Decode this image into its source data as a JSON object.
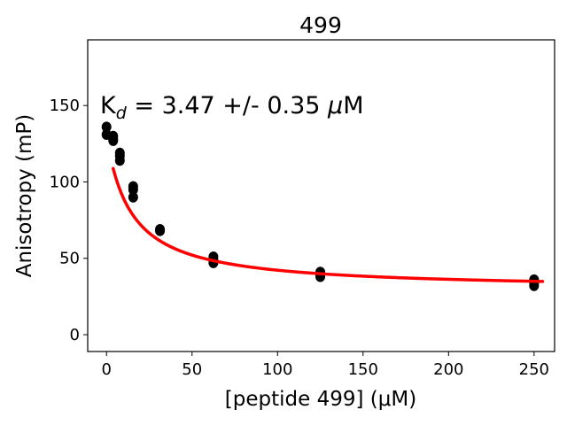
{
  "chart_data": {
    "type": "scatter",
    "title": "499",
    "xlabel": "[peptide 499] (μM)",
    "ylabel": "Anisotropy (mP)",
    "annotation": {
      "k_main": "K",
      "k_sub": "d",
      "text": " = 3.47 +/- 0.35 ",
      "mu": "μ",
      "unit": "M"
    },
    "xlim": [
      -11,
      262
    ],
    "ylim": [
      -11,
      193
    ],
    "xticks": [
      0,
      50,
      100,
      150,
      200,
      250
    ],
    "yticks": [
      0,
      50,
      100,
      150
    ],
    "grid": false,
    "series": [
      {
        "kind": "points",
        "color": "#000000",
        "points": [
          [
            0,
            136
          ],
          [
            0,
            131
          ],
          [
            3.9,
            130
          ],
          [
            3.9,
            128
          ],
          [
            3.9,
            127
          ],
          [
            7.8,
            119
          ],
          [
            7.8,
            117
          ],
          [
            7.8,
            114
          ],
          [
            15.6,
            97
          ],
          [
            15.6,
            95
          ],
          [
            15.6,
            90
          ],
          [
            31.25,
            69
          ],
          [
            31.25,
            68
          ],
          [
            62.5,
            51
          ],
          [
            62.5,
            49
          ],
          [
            62.5,
            47
          ],
          [
            125,
            41
          ],
          [
            125,
            39
          ],
          [
            125,
            38
          ],
          [
            250,
            36
          ],
          [
            250,
            34
          ],
          [
            250,
            32
          ]
        ]
      },
      {
        "kind": "fit",
        "color": "#ff0000",
        "model": {
          "bottom": 29.4,
          "top": 130,
          "ec50": 14.6,
          "x_start": 3.9,
          "x_end": 255
        }
      }
    ]
  }
}
